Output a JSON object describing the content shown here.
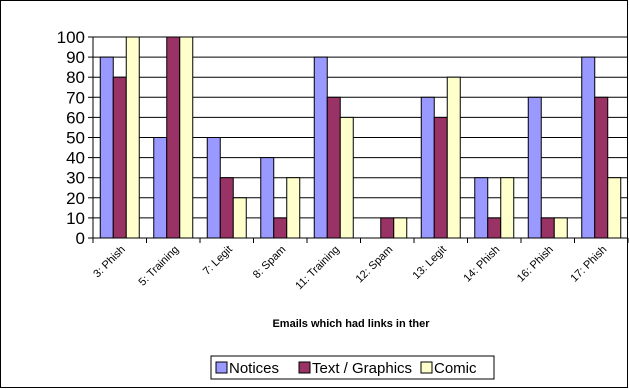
{
  "chart_data": {
    "type": "bar",
    "categories": [
      "3: Phish",
      "5: Training",
      "7: Legit",
      "8: Spam",
      "11: Training",
      "12: Spam",
      "13: Legit",
      "14: Phish",
      "16: Phish",
      "17: Phish"
    ],
    "series": [
      {
        "name": "Notices",
        "color": "#9999ff",
        "values": [
          90,
          50,
          50,
          40,
          90,
          0,
          70,
          30,
          70,
          90
        ]
      },
      {
        "name": "Text / Graphics",
        "color": "#993366",
        "values": [
          80,
          100,
          30,
          10,
          70,
          10,
          60,
          10,
          10,
          70
        ]
      },
      {
        "name": "Comic",
        "color": "#ffffcc",
        "values": [
          100,
          100,
          20,
          30,
          60,
          10,
          80,
          30,
          10,
          30
        ]
      }
    ],
    "xlabel": "Emails which had links in ther",
    "ylabel": "",
    "ylim": [
      0,
      100
    ],
    "yticks": [
      0,
      10,
      20,
      30,
      40,
      50,
      60,
      70,
      80,
      90,
      100
    ],
    "grid": true,
    "legend": "bottom"
  }
}
